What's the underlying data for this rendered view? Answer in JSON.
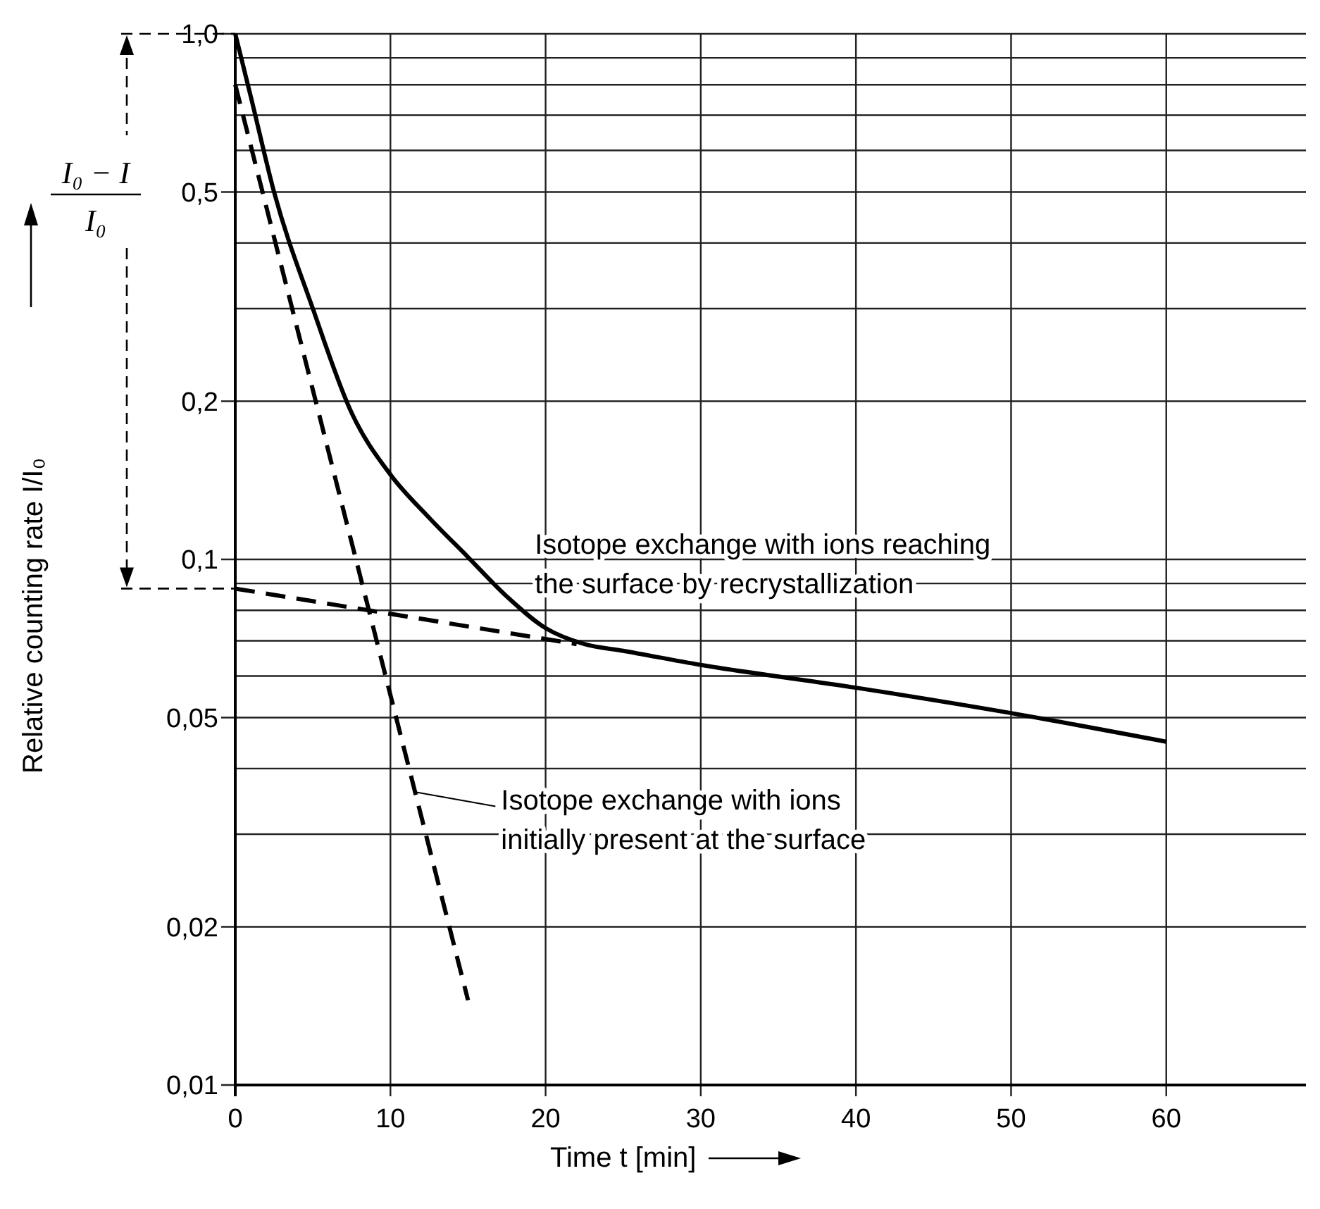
{
  "chart_data": {
    "type": "line",
    "xlabel": "Time t [min]",
    "ylabel": "Relative counting rate I/I₀",
    "log": "y",
    "xlim": [
      0,
      69
    ],
    "xticks": [
      0,
      10,
      20,
      30,
      40,
      50,
      60
    ],
    "ylim": [
      0.01,
      1.0
    ],
    "yticks": [
      {
        "value": 0.01,
        "label": "0,01"
      },
      {
        "value": 0.02,
        "label": "0,02"
      },
      {
        "value": 0.03,
        "label": null
      },
      {
        "value": 0.04,
        "label": null
      },
      {
        "value": 0.05,
        "label": "0,05"
      },
      {
        "value": 0.06,
        "label": null
      },
      {
        "value": 0.07,
        "label": null
      },
      {
        "value": 0.08,
        "label": null
      },
      {
        "value": 0.09,
        "label": null
      },
      {
        "value": 0.1,
        "label": "0,1"
      },
      {
        "value": 0.2,
        "label": "0,2"
      },
      {
        "value": 0.3,
        "label": null
      },
      {
        "value": 0.4,
        "label": null
      },
      {
        "value": 0.5,
        "label": "0,5"
      },
      {
        "value": 0.6,
        "label": null
      },
      {
        "value": 0.7,
        "label": null
      },
      {
        "value": 0.8,
        "label": null
      },
      {
        "value": 0.9,
        "label": null
      },
      {
        "value": 1.0,
        "label": "1,0"
      }
    ],
    "grid": true,
    "marker": "none",
    "series": [
      {
        "color": "#000000",
        "line_style": "solid",
        "x": [
          0,
          1,
          2.5,
          5,
          7.5,
          10,
          12.5,
          15,
          17.5,
          20,
          22.5,
          25,
          30,
          40,
          50,
          60
        ],
        "values": [
          1.0,
          0.76,
          0.5,
          0.3,
          0.19,
          0.145,
          0.12,
          0.101,
          0.085,
          0.074,
          0.069,
          0.067,
          0.063,
          0.057,
          0.051,
          0.045
        ]
      },
      {
        "color": "#000000",
        "line_style": "dashed",
        "x": [
          0,
          22
        ],
        "values": [
          0.088,
          0.069
        ]
      },
      {
        "color": "#000000",
        "line_style": "dashed",
        "x": [
          0,
          15
        ],
        "values": [
          0.8,
          0.0145
        ]
      }
    ],
    "annotations": [
      "Isotope exchange with ions reaching\nthe surface by recrystallization",
      {
        "text": "Isotope exchange with ions\ninitially present at the surface",
        "x": 11.5,
        "y": 0.0365
      },
      "I₀ − I",
      "I₀"
    ]
  }
}
